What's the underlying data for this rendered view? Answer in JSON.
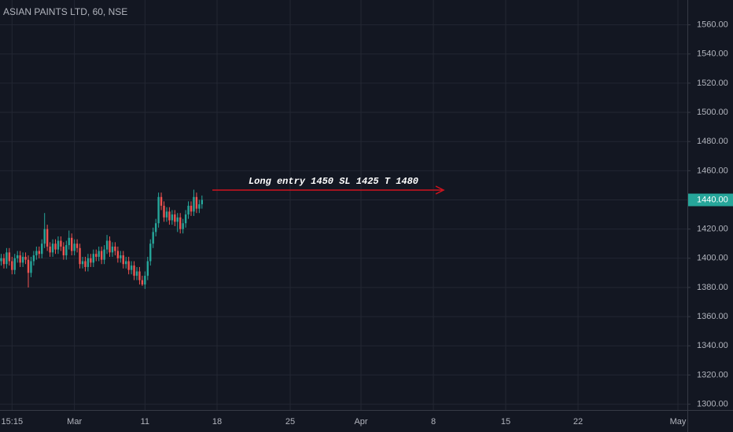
{
  "chart_data": {
    "type": "candlestick",
    "title": "ASIAN PAINTS LTD, 60, NSE",
    "annotation": "Long entry 1450 SL 1425 T 1480",
    "up_color": "#26a69a",
    "down_color": "#ef5350",
    "annotation_color": "#d0141e",
    "categories": [
      null,
      null,
      null,
      null,
      "15:15",
      null,
      null,
      null,
      null,
      null,
      null,
      null,
      null,
      null,
      null,
      null,
      null,
      null,
      null,
      null,
      null,
      null,
      null,
      null,
      null,
      null,
      null,
      "Mar",
      null,
      null,
      null,
      null,
      null,
      null,
      null,
      null,
      null,
      null,
      null,
      null,
      null,
      null,
      null,
      null,
      null,
      null,
      null,
      null,
      null,
      null,
      null,
      null,
      null,
      "11",
      null,
      null,
      null,
      null,
      null,
      null,
      null,
      null,
      null,
      null,
      null,
      null,
      null,
      null,
      null,
      null,
      null,
      null,
      null,
      null,
      null
    ],
    "future_labels": [
      "18",
      "25",
      "Apr",
      "8",
      "15",
      "22",
      "May"
    ],
    "open": [
      1398,
      1400,
      1396,
      1404,
      1398,
      1392,
      1400,
      1402,
      1397,
      1401,
      1399,
      1390,
      1398,
      1402,
      1405,
      1403,
      1410,
      1420,
      1408,
      1404,
      1410,
      1406,
      1412,
      1408,
      1402,
      1409,
      1414,
      1405,
      1410,
      1407,
      1396,
      1398,
      1394,
      1400,
      1397,
      1403,
      1401,
      1405,
      1399,
      1406,
      1412,
      1404,
      1408,
      1405,
      1400,
      1402,
      1396,
      1398,
      1392,
      1395,
      1388,
      1391,
      1385,
      1382,
      1388,
      1398,
      1410,
      1418,
      1424,
      1442,
      1436,
      1428,
      1432,
      1426,
      1430,
      1425,
      1428,
      1420,
      1424,
      1430,
      1436,
      1432,
      1442,
      1434,
      1437
    ],
    "high": [
      1403,
      1403,
      1407,
      1407,
      1401,
      1403,
      1405,
      1405,
      1404,
      1404,
      1402,
      1401,
      1405,
      1408,
      1408,
      1413,
      1431,
      1423,
      1411,
      1413,
      1413,
      1415,
      1415,
      1411,
      1412,
      1419,
      1417,
      1413,
      1413,
      1410,
      1401,
      1401,
      1403,
      1403,
      1406,
      1406,
      1408,
      1408,
      1409,
      1416,
      1415,
      1411,
      1411,
      1408,
      1405,
      1405,
      1401,
      1401,
      1398,
      1398,
      1394,
      1394,
      1388,
      1391,
      1401,
      1413,
      1421,
      1427,
      1445,
      1445,
      1439,
      1435,
      1435,
      1433,
      1433,
      1431,
      1431,
      1427,
      1433,
      1439,
      1439,
      1447,
      1445,
      1440,
      1443
    ],
    "low": [
      1395,
      1393,
      1393,
      1395,
      1389,
      1389,
      1397,
      1394,
      1394,
      1396,
      1380,
      1387,
      1395,
      1399,
      1400,
      1400,
      1407,
      1405,
      1401,
      1401,
      1403,
      1403,
      1405,
      1399,
      1399,
      1406,
      1402,
      1402,
      1404,
      1393,
      1393,
      1391,
      1391,
      1394,
      1394,
      1398,
      1398,
      1396,
      1396,
      1403,
      1401,
      1401,
      1402,
      1397,
      1397,
      1393,
      1393,
      1389,
      1389,
      1385,
      1385,
      1382,
      1381,
      1379,
      1385,
      1395,
      1407,
      1415,
      1421,
      1433,
      1425,
      1425,
      1423,
      1423,
      1422,
      1418,
      1417,
      1417,
      1421,
      1427,
      1429,
      1429,
      1431,
      1431,
      1434
    ],
    "close": [
      1400,
      1396,
      1404,
      1398,
      1392,
      1400,
      1402,
      1397,
      1401,
      1399,
      1390,
      1398,
      1402,
      1405,
      1403,
      1410,
      1420,
      1408,
      1404,
      1410,
      1406,
      1412,
      1408,
      1402,
      1409,
      1414,
      1405,
      1410,
      1407,
      1396,
      1398,
      1394,
      1400,
      1397,
      1403,
      1401,
      1405,
      1399,
      1406,
      1412,
      1404,
      1408,
      1405,
      1400,
      1402,
      1396,
      1398,
      1392,
      1395,
      1388,
      1391,
      1385,
      1382,
      1388,
      1398,
      1410,
      1418,
      1424,
      1442,
      1436,
      1428,
      1432,
      1426,
      1430,
      1425,
      1428,
      1420,
      1424,
      1430,
      1436,
      1432,
      1442,
      1434,
      1437,
      1440
    ],
    "last_price": {
      "value": 1440,
      "label": "1440.00"
    },
    "ylim": [
      1296,
      1577
    ],
    "yticks": [
      {
        "value": 1300,
        "label": "1300.00"
      },
      {
        "value": 1320,
        "label": "1320.00"
      },
      {
        "value": 1340,
        "label": "1340.00"
      },
      {
        "value": 1360,
        "label": "1360.00"
      },
      {
        "value": 1380,
        "label": "1380.00"
      },
      {
        "value": 1400,
        "label": "1400.00"
      },
      {
        "value": 1420,
        "label": "1420.00"
      },
      {
        "value": 1440,
        "label": "1440.00"
      },
      {
        "value": 1460,
        "label": "1460.00"
      },
      {
        "value": 1480,
        "label": "1480.00"
      },
      {
        "value": 1500,
        "label": "1500.00"
      },
      {
        "value": 1520,
        "label": "1520.00"
      },
      {
        "value": 1540,
        "label": "1540.00"
      },
      {
        "value": 1560,
        "label": "1560.00"
      }
    ],
    "grid": true
  }
}
